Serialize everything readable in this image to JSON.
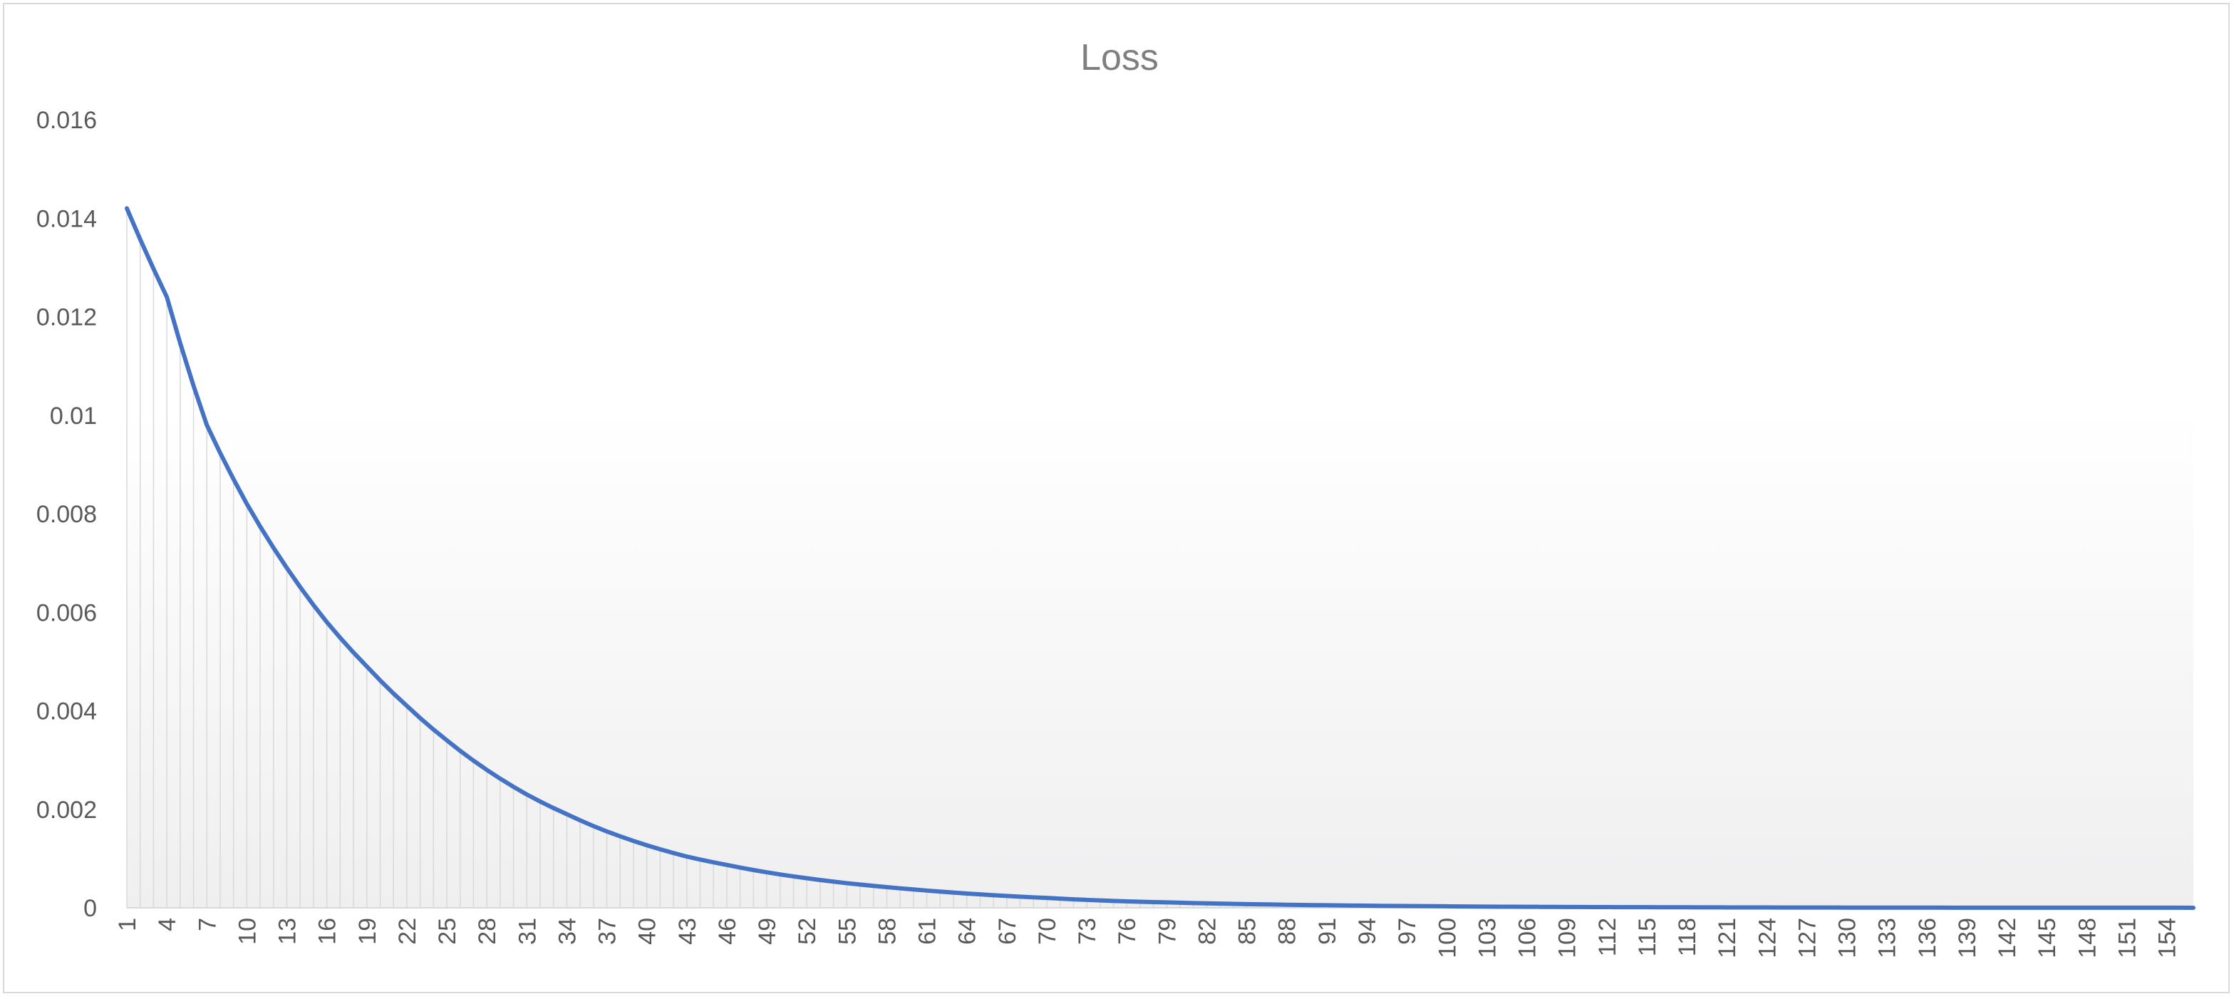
{
  "chart_data": {
    "type": "area",
    "title": "Loss",
    "xlabel": "",
    "ylabel": "",
    "ylim": [
      0,
      0.016
    ],
    "yticks": [
      "0",
      "0.002",
      "0.004",
      "0.006",
      "0.008",
      "0.01",
      "0.012",
      "0.014",
      "0.016"
    ],
    "xlim": [
      1,
      156
    ],
    "xticks": [
      1,
      4,
      7,
      10,
      13,
      16,
      19,
      22,
      25,
      28,
      31,
      34,
      37,
      40,
      43,
      46,
      49,
      52,
      55,
      58,
      61,
      64,
      67,
      70,
      73,
      76,
      79,
      82,
      85,
      88,
      91,
      94,
      97,
      100,
      103,
      106,
      109,
      112,
      115,
      118,
      121,
      124,
      127,
      130,
      133,
      136,
      139,
      142,
      145,
      148,
      151,
      154
    ],
    "grid": false,
    "legend": "none",
    "colors": {
      "line": "#4472c4",
      "droplines": "#d9d9d9",
      "fill_top": "#ffffff",
      "fill_bottom": "#efeff0",
      "axis": "#d9d9d9"
    },
    "series": [
      {
        "x": [
          1,
          4,
          7,
          10,
          13,
          16,
          19,
          22,
          25,
          28,
          31,
          34,
          37,
          40,
          43,
          46,
          49,
          52,
          55,
          58,
          61,
          64,
          67,
          70,
          73,
          76,
          79,
          82,
          85,
          88,
          91,
          94,
          97,
          100,
          103,
          106,
          109,
          112,
          115,
          118,
          121,
          124,
          127,
          130,
          133,
          136,
          139,
          142,
          145,
          148,
          151,
          154,
          156
        ],
        "values": [
          0.0142,
          0.0124,
          0.0098,
          0.0082,
          0.0069,
          0.0058,
          0.0049,
          0.0041,
          0.0034,
          0.0028,
          0.0023,
          0.0019,
          0.00155,
          0.00127,
          0.00104,
          0.00087,
          0.00072,
          0.0006,
          0.0005,
          0.00042,
          0.00035,
          0.00029,
          0.00024,
          0.0002,
          0.00016,
          0.00013,
          0.00011,
          9e-05,
          7.5e-05,
          6.2e-05,
          5.2e-05,
          4.3e-05,
          3.6e-05,
          3e-05,
          2.4e-05,
          2e-05,
          1.7e-05,
          1.4e-05,
          1.2e-05,
          1e-05,
          8e-06,
          6.5e-06,
          5.5e-06,
          4.5e-06,
          3.7e-06,
          3e-06,
          2.5e-06,
          2e-06,
          1.7e-06,
          1.4e-06,
          1.2e-06,
          1e-06,
          9e-07
        ]
      }
    ]
  }
}
